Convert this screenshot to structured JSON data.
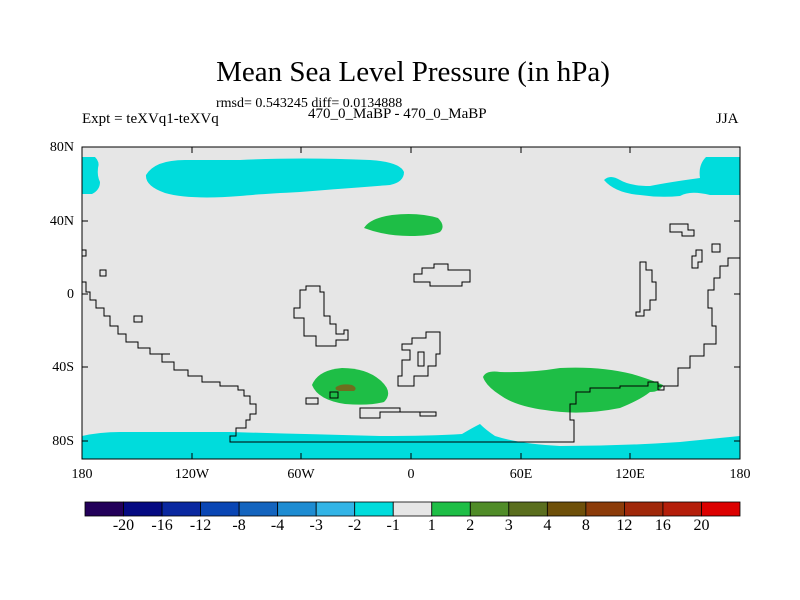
{
  "title": "Mean Sea Level Pressure (in hPa)",
  "stats": "rmsd= 0.543245 diff= 0.0134888",
  "left_label": "Expt = teXVq1-teXVq",
  "center_label": "470_0_MaBP - 470_0_MaBP",
  "right_label": "JJA",
  "map": {
    "lon_ticks": [
      "180",
      "120W",
      "60W",
      "0",
      "60E",
      "120E",
      "180"
    ],
    "lat_ticks": [
      "80N",
      "40N",
      "0",
      "40S",
      "80S"
    ],
    "background_color": "#e6e6e6",
    "coastline_color": "#000000"
  },
  "colorbar": {
    "colors": [
      "#23005a",
      "#050a82",
      "#0a28a0",
      "#0a46b4",
      "#1464be",
      "#1e8cd2",
      "#32b4e6",
      "#00dcdc",
      "#e6e6e6",
      "#1ebe46",
      "#508c28",
      "#5a6e1e",
      "#6e500a",
      "#8c3c0a",
      "#a0280a",
      "#b41e0a",
      "#dc0000"
    ],
    "tick_labels": [
      "-20",
      "-16",
      "-12",
      "-8",
      "-4",
      "-3",
      "-2",
      "-1",
      "1",
      "2",
      "3",
      "4",
      "8",
      "12",
      "16",
      "20"
    ]
  }
}
